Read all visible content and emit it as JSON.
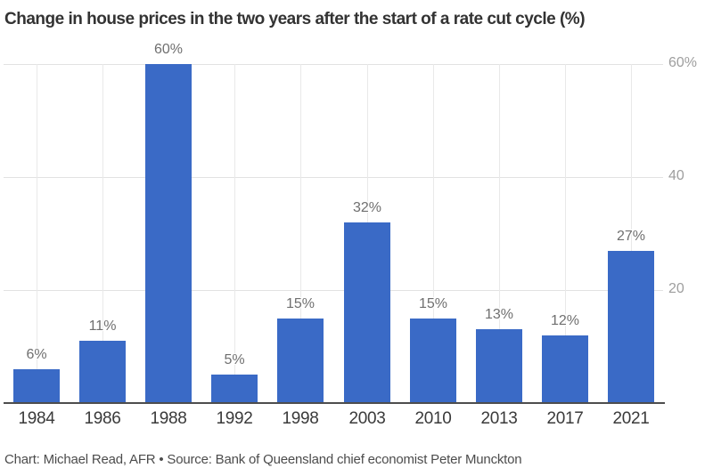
{
  "title": "Change in house prices in the two years after the start of a rate cut cycle (%)",
  "footer": "Chart: Michael Read, AFR • Source: Bank of Queensland chief economist Peter Munckton",
  "chart_data": {
    "type": "bar",
    "title": "Change in house prices in the two years after the start of a rate cut cycle (%)",
    "categories": [
      "1984",
      "1986",
      "1988",
      "1992",
      "1998",
      "2003",
      "2010",
      "2013",
      "2017",
      "2021"
    ],
    "values": [
      6,
      11,
      60,
      5,
      15,
      32,
      15,
      13,
      12,
      27
    ],
    "bar_labels": [
      "6%",
      "11%",
      "60%",
      "5%",
      "15%",
      "32%",
      "15%",
      "13%",
      "12%",
      "27%"
    ],
    "xlabel": "",
    "ylabel": "",
    "ylim": [
      0,
      60
    ],
    "yticks": [
      {
        "value": 20,
        "label": "20"
      },
      {
        "value": 40,
        "label": "40"
      },
      {
        "value": 60,
        "label": "60%"
      }
    ],
    "grid": "light horizontal gridlines at 20/40/60 and light vertical gridline behind each bar",
    "legend": "none",
    "y_axis_side": "right",
    "source_note": "Chart: Michael Read, AFR • Source: Bank of Queensland chief economist Peter Munckton"
  },
  "colors": {
    "bar": "#3A6AC6",
    "grid_horizontal": "#E2E2E2",
    "grid_vertical": "#E9E9E9",
    "axis_line": "#4D4D4D",
    "value_label": "#6F6F6F",
    "x_tick_label": "#3A3A3A",
    "y_tick_label": "#9E9E9E",
    "title": "#333333",
    "footer": "#4C4C4C",
    "background": "#FFFFFF"
  }
}
